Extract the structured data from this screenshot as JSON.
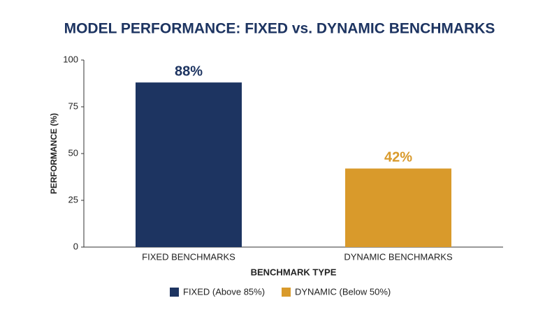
{
  "chart_data": {
    "type": "bar",
    "title": "MODEL PERFORMANCE: FIXED vs. DYNAMIC BENCHMARKS",
    "x_label": "BENCHMARK TYPE",
    "y_label": "PERFORMANCE (%)",
    "categories": [
      "FIXED BENCHMARKS",
      "DYNAMIC BENCHMARKS"
    ],
    "values": [
      88,
      42
    ],
    "value_labels": [
      "88%",
      "42%"
    ],
    "colors": [
      "#1d3461",
      "#d99a2b"
    ],
    "legend": [
      "FIXED (Above 85%)",
      "DYNAMIC (Below 50%)"
    ],
    "ylim": [
      0,
      100
    ],
    "yticks": [
      0,
      25,
      50,
      75,
      100
    ],
    "grid": false
  }
}
